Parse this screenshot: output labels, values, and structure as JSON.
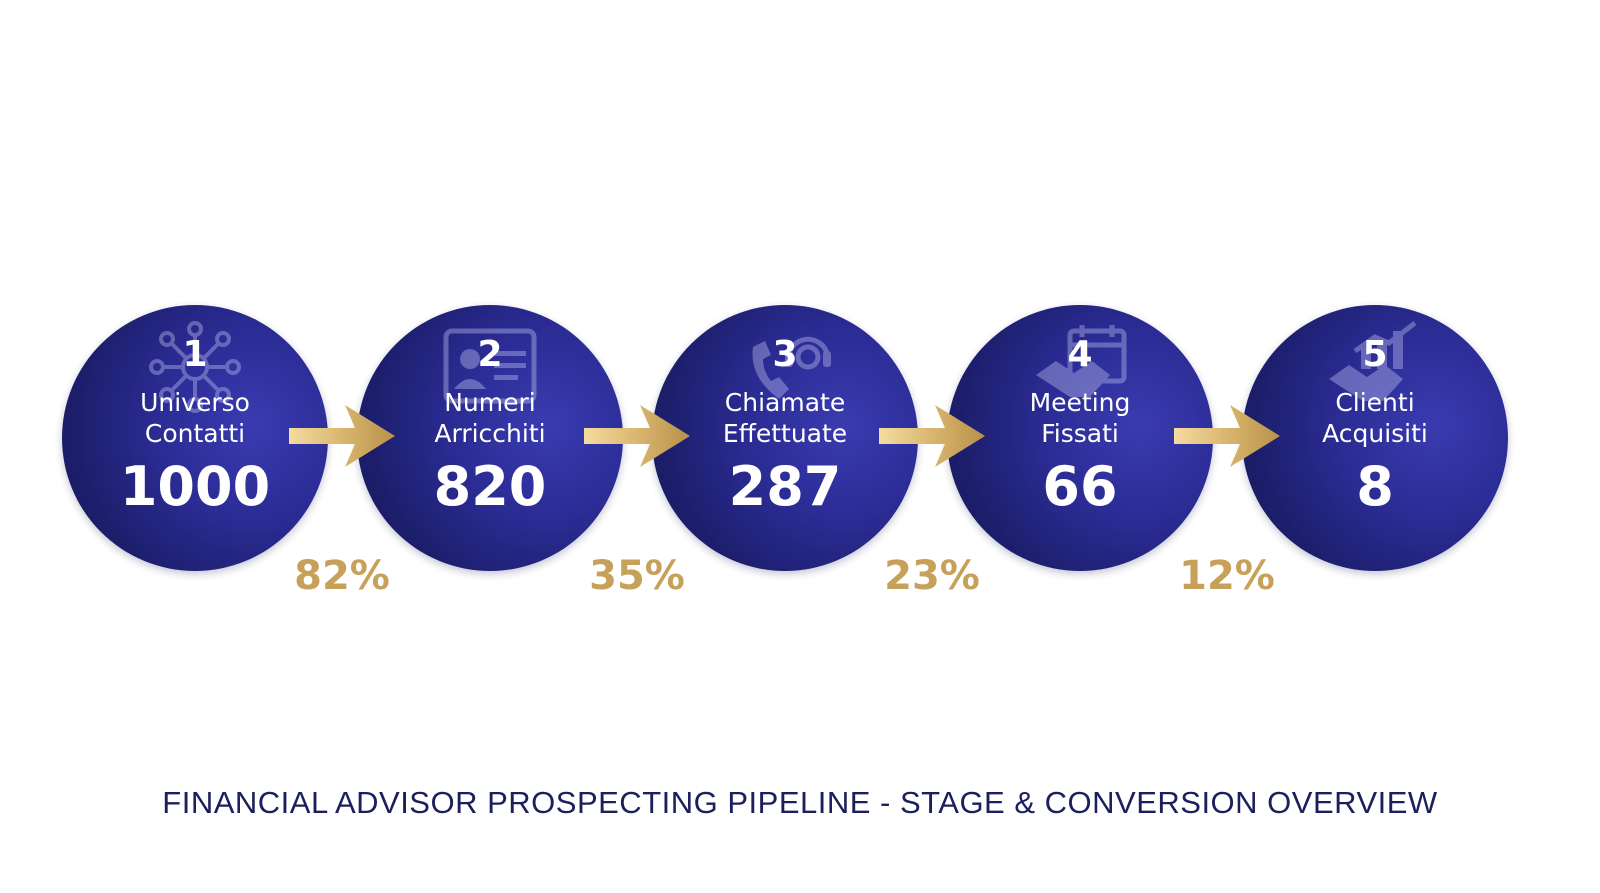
{
  "title": "FINANCIAL ADVISOR PROSPECTING PIPELINE - STAGE & CONVERSION OVERVIEW",
  "colors": {
    "stage_fill": "#2c2c96",
    "accent_gold": "#c7a15a",
    "title_text": "#1b1f5c"
  },
  "stages": [
    {
      "number": "1",
      "label_line1": "Universo",
      "label_line2": "Contatti",
      "value": "1000",
      "icon": "network-icon"
    },
    {
      "number": "2",
      "label_line1": "Numeri",
      "label_line2": "Arricchiti",
      "value": "820",
      "icon": "contact-card-icon"
    },
    {
      "number": "3",
      "label_line1": "Chiamate",
      "label_line2": "Effettuate",
      "value": "287",
      "icon": "phone-headset-icon"
    },
    {
      "number": "4",
      "label_line1": "Meeting",
      "label_line2": "Fissati",
      "value": "66",
      "icon": "calendar-handshake-icon"
    },
    {
      "number": "5",
      "label_line1": "Clienti",
      "label_line2": "Acquisiti",
      "value": "8",
      "icon": "handshake-growth-icon"
    }
  ],
  "conversions": [
    {
      "rate": "82%"
    },
    {
      "rate": "35%"
    },
    {
      "rate": "23%"
    },
    {
      "rate": "12%"
    }
  ]
}
